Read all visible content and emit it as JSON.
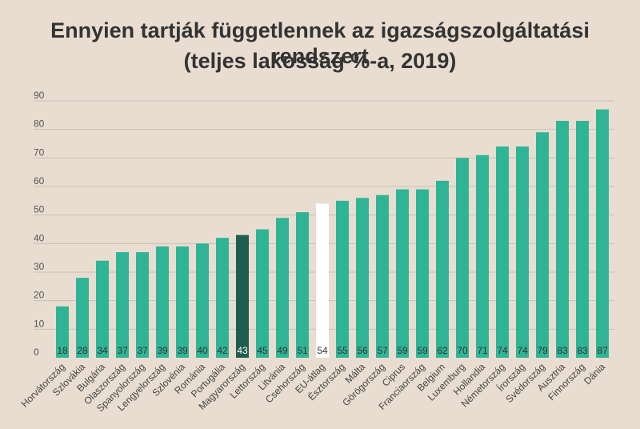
{
  "colors": {
    "background": "#e8ddd0",
    "bar": "#2fb596",
    "highlight": "#1f5d4e",
    "average": "#ffffff",
    "grid": "#c8c0b6",
    "label_dark": "#333333",
    "label_light": "#ffffff"
  },
  "chart_data": {
    "type": "bar",
    "title": "Ennyien tartják függetlennek az igazságszolgáltatási rendszert",
    "subtitle": "(teljes lakosság %-a, 2019)",
    "xlabel": "",
    "ylabel": "",
    "ylim": [
      0,
      90
    ],
    "yticks": [
      0,
      10,
      20,
      30,
      40,
      50,
      60,
      70,
      80,
      90
    ],
    "grid": true,
    "legend": "none",
    "categories": [
      "Horvátország",
      "Szlovákia",
      "Bulgária",
      "Olaszország",
      "Spanyolország",
      "Lengyelország",
      "Szlovénia",
      "Románia",
      "Portugália",
      "Magyarország",
      "Lettország",
      "Litvánia",
      "Csehország",
      "EU-átlag",
      "Észtország",
      "Málta",
      "Görögország",
      "Ciprus",
      "Franciaország",
      "Belgium",
      "Luxemburg",
      "Hollandia",
      "Németország",
      "Írország",
      "Svédország",
      "Ausztria",
      "Finnország",
      "Dánia"
    ],
    "values": [
      18,
      28,
      34,
      37,
      37,
      39,
      39,
      40,
      42,
      43,
      45,
      49,
      51,
      54,
      55,
      56,
      57,
      59,
      59,
      62,
      70,
      71,
      74,
      74,
      79,
      83,
      83,
      87
    ],
    "highlight_category": "Magyarország",
    "average_category": "EU-átlag"
  }
}
